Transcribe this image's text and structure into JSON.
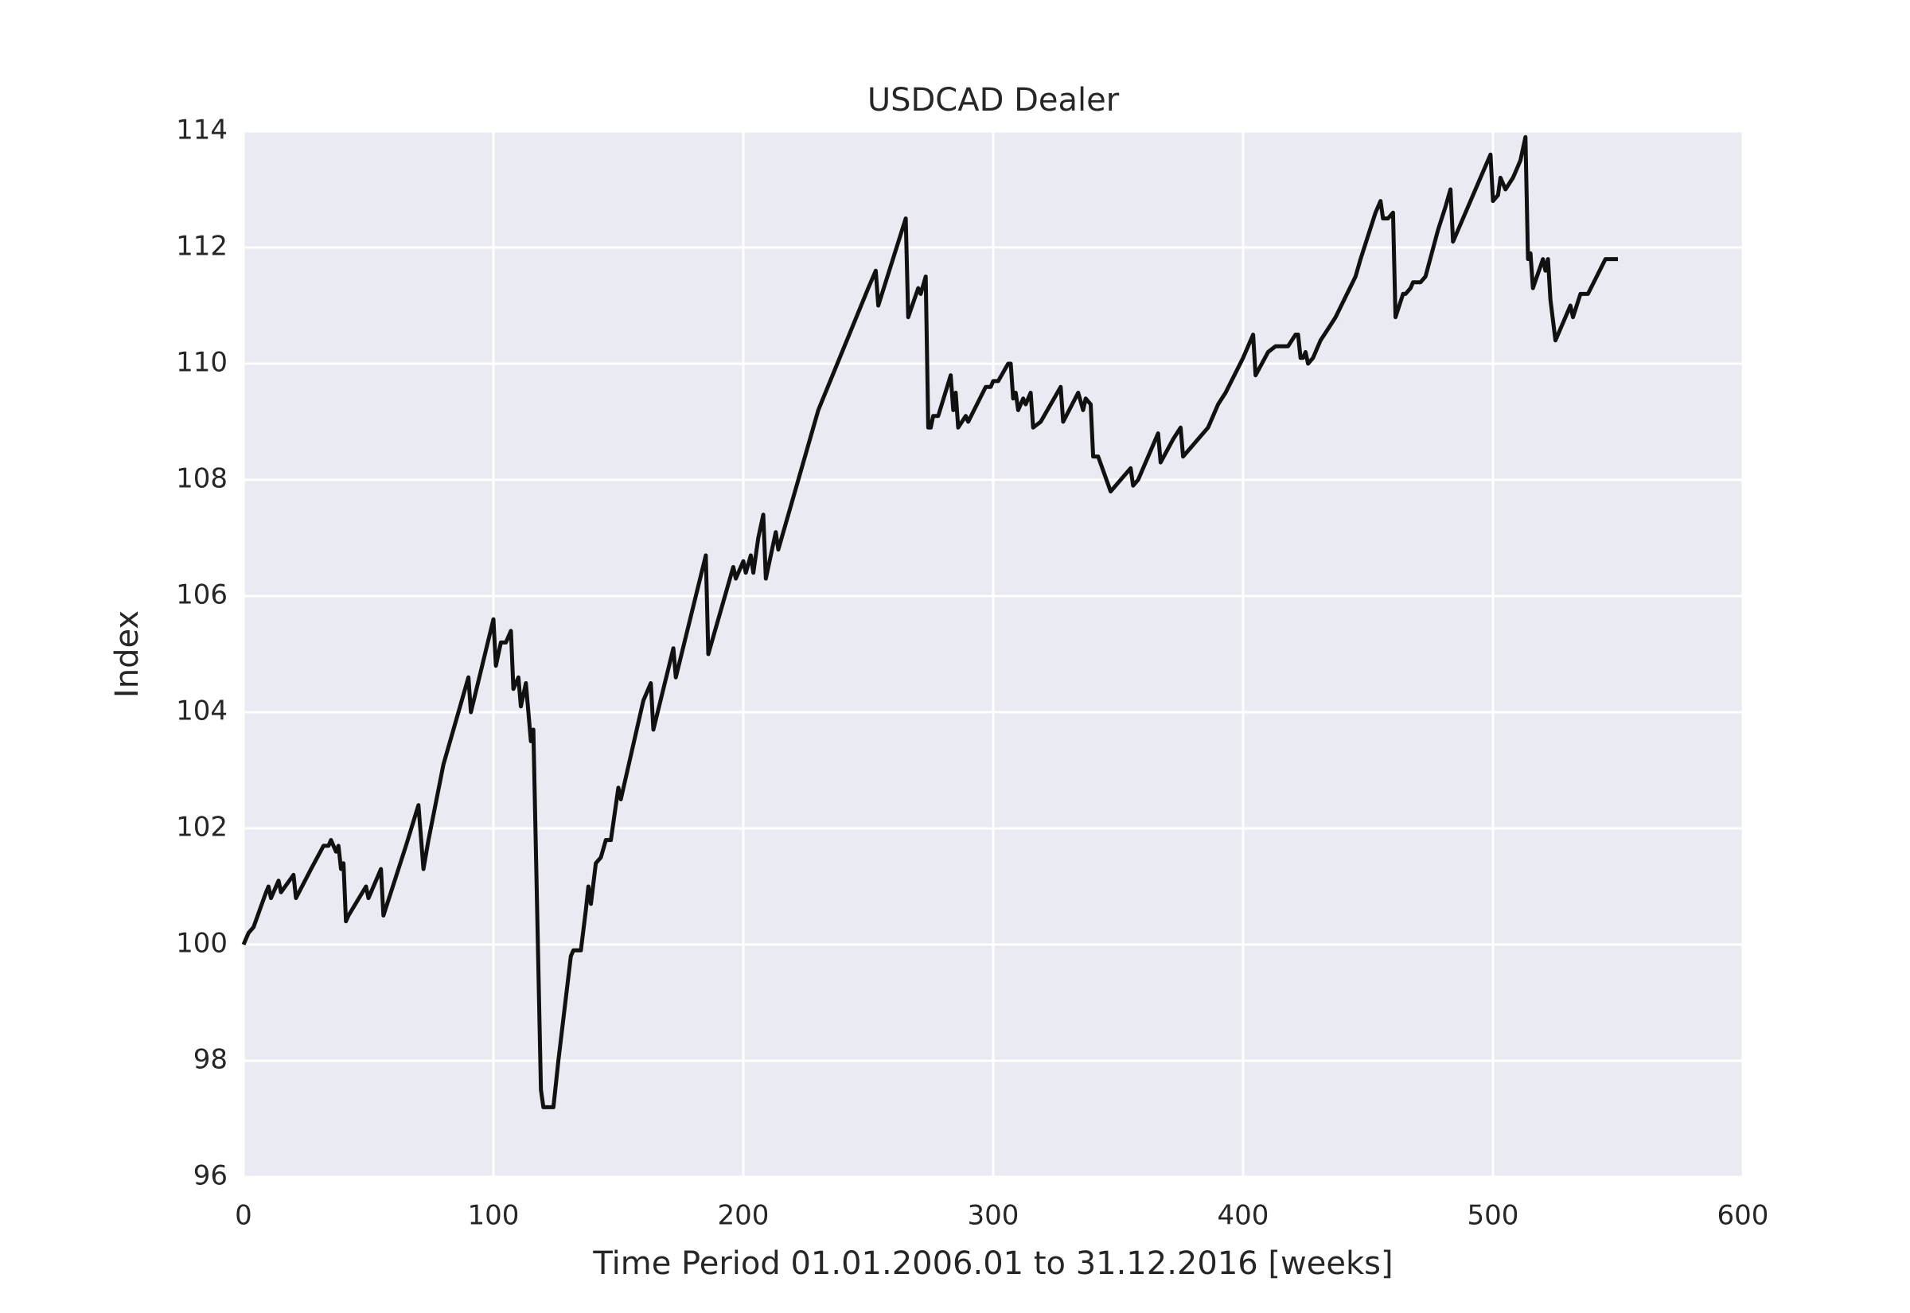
{
  "chart_data": {
    "type": "line",
    "title": "USDCAD Dealer",
    "x_label": "Time Period 01.01.2006.01 to 31.12.2016 [weeks]",
    "y_label": "Index",
    "color": "#111111",
    "grid": true,
    "background": "#eaeaf2",
    "xlim": [
      0,
      600
    ],
    "xticks": [
      0,
      100,
      200,
      300,
      400,
      500,
      600
    ],
    "ylim": [
      96,
      114
    ],
    "yticks": [
      96,
      98,
      100,
      102,
      104,
      106,
      108,
      110,
      112,
      114
    ],
    "x": [
      0,
      2,
      4,
      9,
      10,
      11,
      14,
      15,
      20,
      21,
      27,
      32,
      34,
      35,
      37,
      38,
      39,
      40,
      41,
      42,
      49,
      50,
      55,
      56,
      65,
      70,
      72,
      74,
      80,
      90,
      91,
      100,
      101,
      103,
      105,
      107,
      108,
      110,
      111,
      113,
      115,
      116,
      119,
      120,
      124,
      126,
      131,
      132,
      135,
      137,
      138,
      139,
      141,
      143,
      145,
      147,
      150,
      151,
      160,
      163,
      164,
      172,
      173,
      185,
      186,
      196,
      197,
      200,
      201,
      203,
      204,
      206,
      208,
      209,
      213,
      214,
      230,
      250,
      253,
      254,
      265,
      266,
      270,
      271,
      273,
      274,
      275,
      276,
      278,
      283,
      284,
      285,
      286,
      289,
      290,
      297,
      299,
      300,
      302,
      306,
      307,
      308,
      309,
      310,
      312,
      313,
      315,
      316,
      319,
      327,
      328,
      334,
      336,
      337,
      339,
      340,
      342,
      347,
      349,
      355,
      356,
      358,
      366,
      367,
      372,
      375,
      376,
      386,
      390,
      393,
      400,
      404,
      405,
      410,
      413,
      418,
      421,
      422,
      423,
      424,
      425,
      426,
      428,
      431,
      434,
      437,
      445,
      447,
      453,
      455,
      456,
      458,
      460,
      461,
      464,
      465,
      467,
      468,
      471,
      473,
      478,
      481,
      483,
      484,
      493,
      496,
      499,
      500,
      502,
      503,
      505,
      508,
      509,
      511,
      513,
      514,
      515,
      516,
      520,
      521,
      522,
      523,
      525,
      531,
      532,
      535,
      538,
      545,
      547,
      550
    ],
    "values": [
      100.0,
      100.2,
      100.3,
      100.9,
      101.0,
      100.8,
      101.1,
      100.9,
      101.2,
      100.8,
      101.3,
      101.7,
      101.7,
      101.8,
      101.6,
      101.7,
      101.3,
      101.4,
      100.4,
      100.5,
      101.0,
      100.8,
      101.3,
      100.5,
      101.7,
      102.4,
      101.3,
      101.8,
      103.1,
      104.6,
      104.0,
      105.6,
      104.8,
      105.2,
      105.2,
      105.4,
      104.4,
      104.6,
      104.1,
      104.5,
      103.5,
      103.7,
      97.5,
      97.2,
      97.2,
      98.0,
      99.8,
      99.9,
      99.9,
      100.6,
      101.0,
      100.7,
      101.4,
      101.5,
      101.8,
      101.8,
      102.7,
      102.5,
      104.2,
      104.5,
      103.7,
      105.1,
      104.6,
      106.7,
      105.0,
      106.5,
      106.3,
      106.6,
      106.4,
      106.7,
      106.4,
      107.0,
      107.4,
      106.3,
      107.1,
      106.8,
      109.2,
      111.3,
      111.6,
      111.0,
      112.5,
      110.8,
      111.3,
      111.2,
      111.5,
      108.9,
      108.9,
      109.1,
      109.1,
      109.8,
      109.2,
      109.5,
      108.9,
      109.1,
      109.0,
      109.6,
      109.6,
      109.7,
      109.7,
      110.0,
      110.0,
      109.4,
      109.5,
      109.2,
      109.4,
      109.3,
      109.5,
      108.9,
      109.0,
      109.6,
      109.0,
      109.5,
      109.2,
      109.4,
      109.3,
      108.4,
      108.4,
      107.8,
      107.9,
      108.2,
      107.9,
      108.0,
      108.8,
      108.3,
      108.7,
      108.9,
      108.4,
      108.9,
      109.3,
      109.5,
      110.1,
      110.5,
      109.8,
      110.2,
      110.3,
      110.3,
      110.5,
      110.5,
      110.1,
      110.1,
      110.2,
      110.0,
      110.1,
      110.4,
      110.6,
      110.8,
      111.5,
      111.8,
      112.6,
      112.8,
      112.5,
      112.5,
      112.6,
      110.8,
      111.2,
      111.2,
      111.3,
      111.4,
      111.4,
      111.5,
      112.3,
      112.7,
      113.0,
      112.1,
      113.0,
      113.3,
      113.6,
      112.8,
      112.9,
      113.2,
      113.0,
      113.2,
      113.3,
      113.5,
      113.9,
      111.8,
      111.9,
      111.3,
      111.8,
      111.6,
      111.8,
      111.1,
      110.4,
      111.0,
      110.8,
      111.2,
      111.2,
      111.8,
      111.8,
      111.8
    ]
  }
}
